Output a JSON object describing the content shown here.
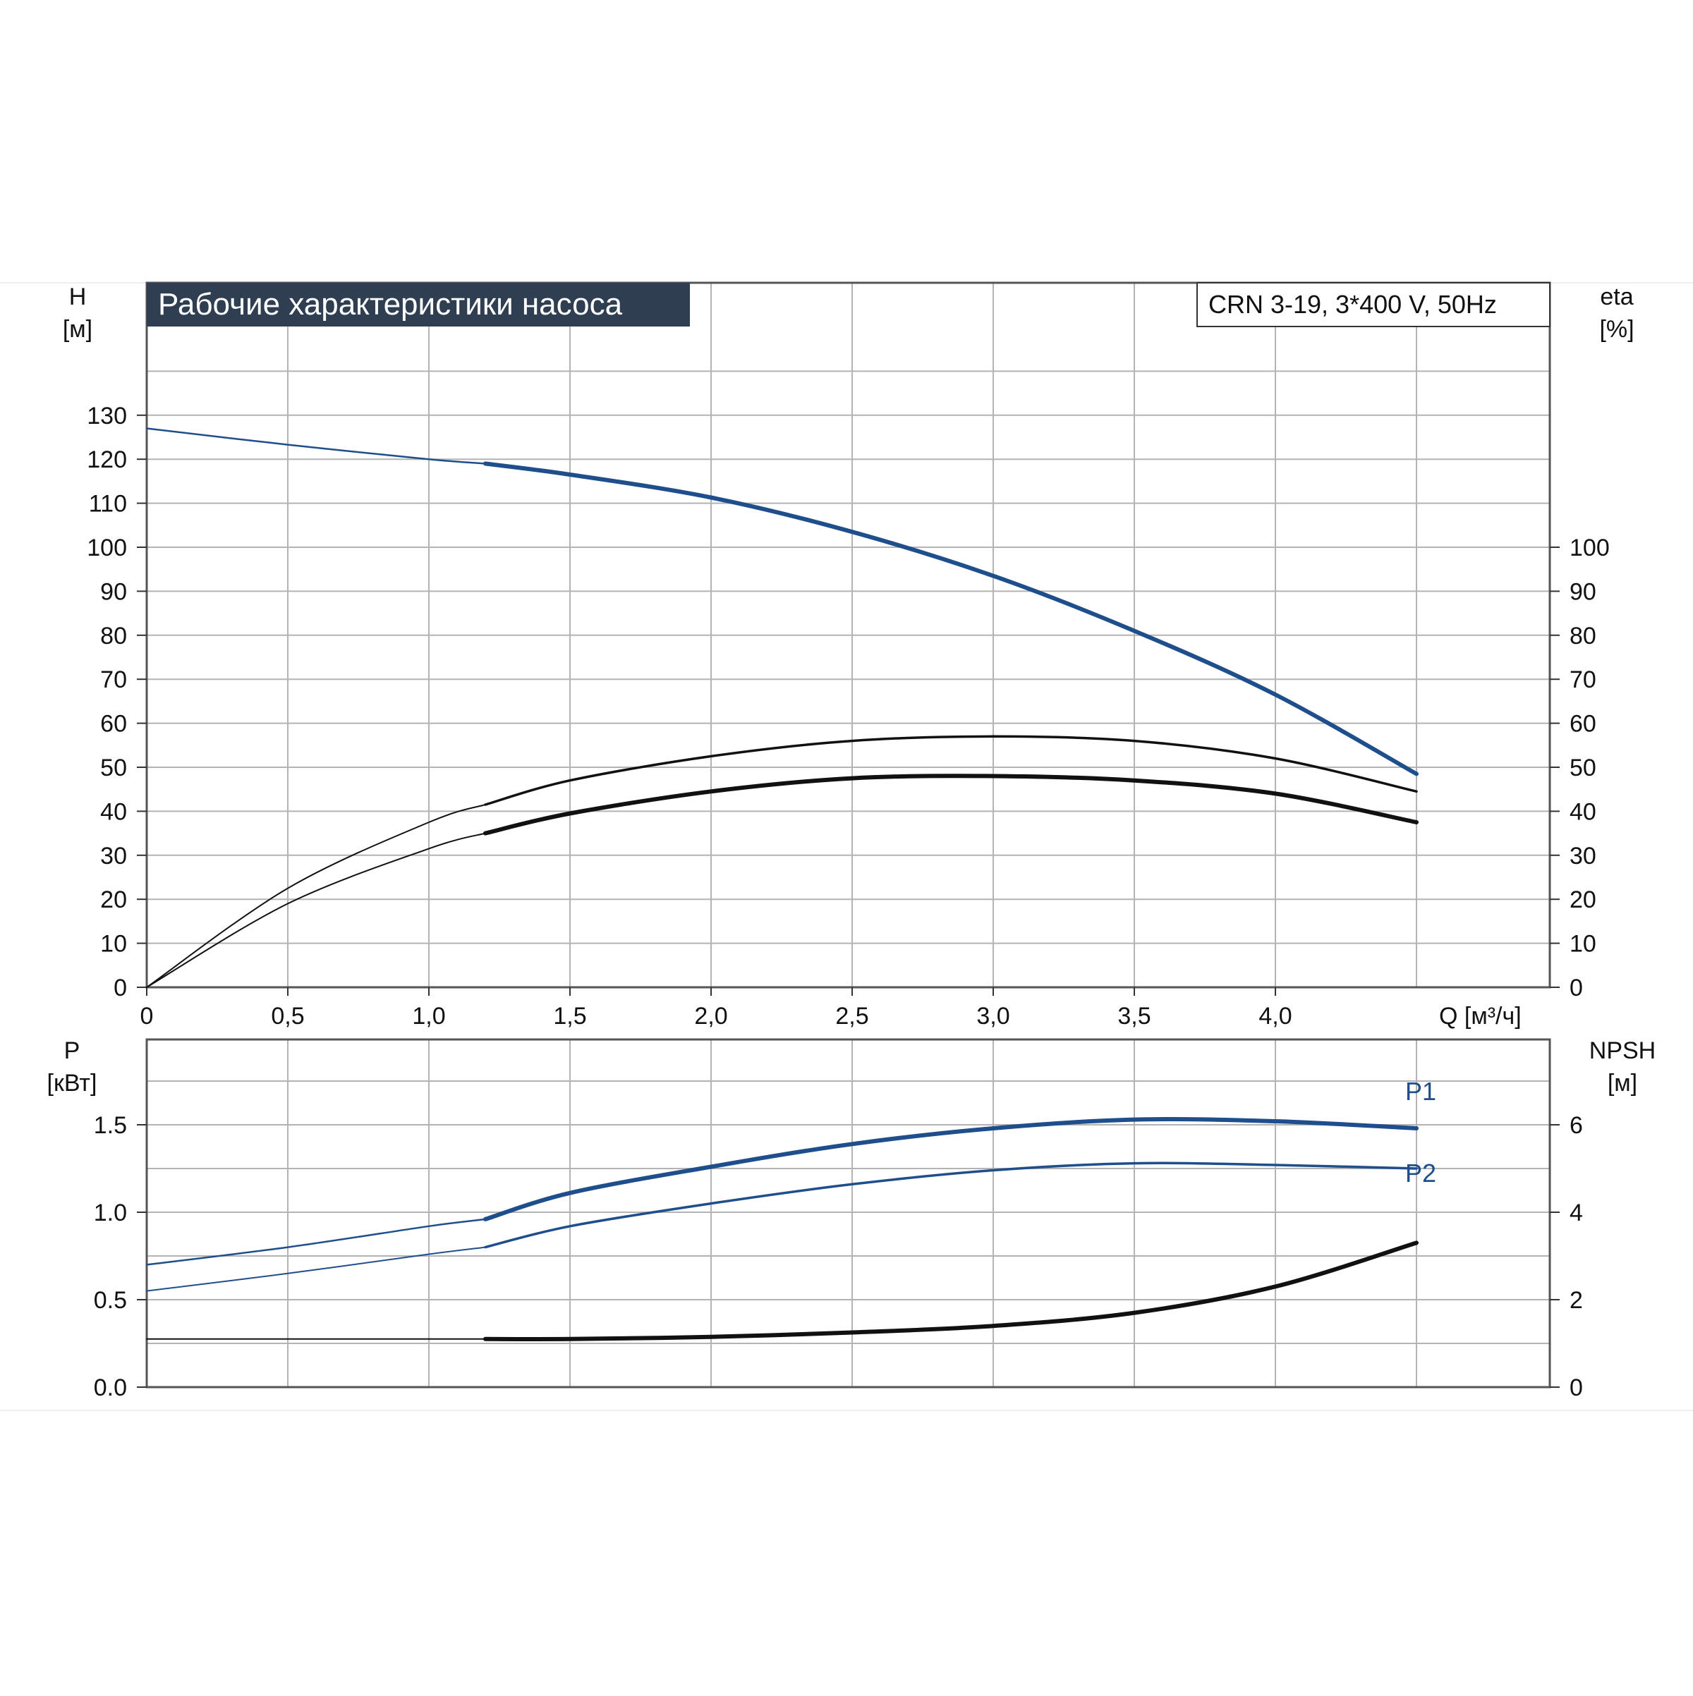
{
  "header": {
    "title": "Рабочие характеристики насоса",
    "model": "CRN 3-19, 3*400 V, 50Hz"
  },
  "colors": {
    "curve_blue": "#1f4e8c",
    "curve_black": "#111111",
    "grid": "#b3b3b3",
    "title_bg": "#2f3e50",
    "title_fg": "#ffffff"
  },
  "chart_data": [
    {
      "type": "line",
      "panel": "upper",
      "x_axis": {
        "label": "Q [м³/ч]",
        "range": [
          0,
          5.0
        ],
        "tick_labels": [
          "0",
          "0,5",
          "1,0",
          "1,5",
          "2,0",
          "2,5",
          "3,0",
          "3,5",
          "4,0"
        ]
      },
      "y_left": {
        "label_top": "H",
        "label_unit": "[м]",
        "range": [
          0,
          130
        ],
        "tick_labels": [
          "0",
          "10",
          "20",
          "30",
          "40",
          "50",
          "60",
          "70",
          "80",
          "90",
          "100",
          "110",
          "120",
          "130"
        ]
      },
      "y_right": {
        "label_top": "eta",
        "label_unit": "[%]",
        "range": [
          0,
          100
        ],
        "tick_labels": [
          "0",
          "10",
          "20",
          "30",
          "40",
          "50",
          "60",
          "70",
          "80",
          "90",
          "100"
        ]
      },
      "grid": true,
      "series": [
        {
          "axis": "left",
          "color": "blue",
          "points": [
            [
              0,
              127
            ],
            [
              0.5,
              123.3
            ],
            [
              1.0,
              120
            ],
            [
              1.2,
              119
            ],
            [
              1.5,
              116.5
            ],
            [
              2.0,
              111.3
            ],
            [
              2.5,
              103.5
            ],
            [
              3.0,
              93.5
            ],
            [
              3.5,
              81
            ],
            [
              4.0,
              66.5
            ],
            [
              4.5,
              48.5
            ]
          ]
        },
        {
          "axis": "right",
          "color": "black",
          "points": [
            [
              0,
              0
            ],
            [
              0.5,
              22.5
            ],
            [
              1.0,
              37.5
            ],
            [
              1.2,
              41.5
            ],
            [
              1.5,
              47
            ],
            [
              2.0,
              52.5
            ],
            [
              2.5,
              56
            ],
            [
              3.0,
              57
            ],
            [
              3.5,
              56
            ],
            [
              4.0,
              52
            ],
            [
              4.5,
              44.5
            ]
          ]
        },
        {
          "axis": "right",
          "color": "black",
          "points": [
            [
              0,
              0
            ],
            [
              0.5,
              19
            ],
            [
              1.0,
              31.5
            ],
            [
              1.2,
              35
            ],
            [
              1.5,
              39.5
            ],
            [
              2.0,
              44.5
            ],
            [
              2.5,
              47.5
            ],
            [
              3.0,
              48
            ],
            [
              3.5,
              47
            ],
            [
              4.0,
              44
            ],
            [
              4.5,
              37.5
            ]
          ]
        }
      ]
    },
    {
      "type": "line",
      "panel": "lower",
      "x_axis": {
        "range": [
          0,
          5.0
        ]
      },
      "y_left": {
        "label_top": "P",
        "label_unit": "[кВт]",
        "range": [
          0,
          2.0
        ],
        "tick_labels": [
          "0.0",
          "0.5",
          "1.0",
          "1.5"
        ]
      },
      "y_right": {
        "label_top": "NPSH",
        "label_unit": "[м]",
        "range": [
          0,
          8
        ],
        "tick_labels": [
          "0",
          "2",
          "4",
          "6"
        ]
      },
      "grid": true,
      "series": [
        {
          "name": "P1",
          "axis": "left",
          "color": "blue",
          "points": [
            [
              0,
              0.7
            ],
            [
              0.5,
              0.8
            ],
            [
              1.0,
              0.92
            ],
            [
              1.2,
              0.96
            ],
            [
              1.5,
              1.11
            ],
            [
              2.0,
              1.26
            ],
            [
              2.5,
              1.39
            ],
            [
              3.0,
              1.48
            ],
            [
              3.5,
              1.53
            ],
            [
              4.0,
              1.52
            ],
            [
              4.5,
              1.48
            ]
          ]
        },
        {
          "name": "P2",
          "axis": "left",
          "color": "blue",
          "points": [
            [
              0,
              0.55
            ],
            [
              0.5,
              0.65
            ],
            [
              1.0,
              0.76
            ],
            [
              1.2,
              0.8
            ],
            [
              1.5,
              0.92
            ],
            [
              2.0,
              1.05
            ],
            [
              2.5,
              1.16
            ],
            [
              3.0,
              1.24
            ],
            [
              3.5,
              1.28
            ],
            [
              4.0,
              1.27
            ],
            [
              4.5,
              1.25
            ]
          ]
        },
        {
          "axis": "right",
          "color": "black",
          "points": [
            [
              0,
              1.1
            ],
            [
              0.5,
              1.1
            ],
            [
              1.0,
              1.1
            ],
            [
              1.2,
              1.1
            ],
            [
              1.5,
              1.1
            ],
            [
              2.0,
              1.15
            ],
            [
              2.5,
              1.25
            ],
            [
              3.0,
              1.4
            ],
            [
              3.5,
              1.7
            ],
            [
              4.0,
              2.3
            ],
            [
              4.5,
              3.3
            ]
          ]
        }
      ]
    }
  ]
}
